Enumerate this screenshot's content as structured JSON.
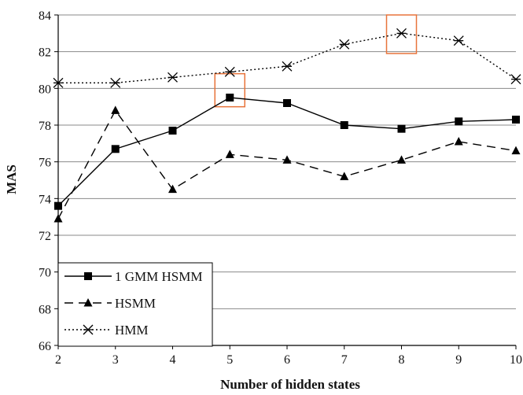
{
  "chart_data": {
    "type": "line",
    "xlabel": "Number of hidden states",
    "ylabel": "MAS",
    "x": [
      2,
      3,
      4,
      5,
      6,
      7,
      8,
      9,
      10
    ],
    "xlim": [
      2,
      10
    ],
    "ylim": [
      66,
      84
    ],
    "yticks": [
      66,
      68,
      70,
      72,
      74,
      76,
      78,
      80,
      82,
      84
    ],
    "ytick_labels": [
      "66",
      "68",
      "70",
      "72",
      "74",
      "76",
      "78",
      "80",
      "82",
      "84"
    ],
    "xtick_labels": [
      "2",
      "3",
      "4",
      "5",
      "6",
      "7",
      "8",
      "9",
      "10"
    ],
    "grid": "horizontal",
    "legend_position": "bottom-left",
    "series": [
      {
        "name": "1 GMM HSMM",
        "values": [
          73.6,
          76.7,
          77.7,
          79.5,
          79.2,
          78.0,
          77.8,
          78.2,
          78.3
        ],
        "line_style": "solid",
        "marker": "square",
        "color": "#000000"
      },
      {
        "name": "HSMM",
        "values": [
          72.9,
          78.8,
          74.5,
          76.4,
          76.1,
          75.2,
          76.1,
          77.1,
          76.6
        ],
        "line_style": "dashed",
        "marker": "triangle",
        "color": "#000000"
      },
      {
        "name": "HMM",
        "values": [
          80.3,
          80.3,
          80.6,
          80.9,
          81.2,
          82.4,
          83.0,
          82.6,
          80.5
        ],
        "line_style": "dotted",
        "marker": "asterisk",
        "color": "#000000"
      }
    ],
    "highlights": [
      {
        "x": 5,
        "y_range": [
          79.0,
          80.8
        ],
        "color": "#e8743b"
      },
      {
        "x": 8,
        "y_range": [
          81.9,
          84.0
        ],
        "color": "#e8743b"
      }
    ]
  }
}
